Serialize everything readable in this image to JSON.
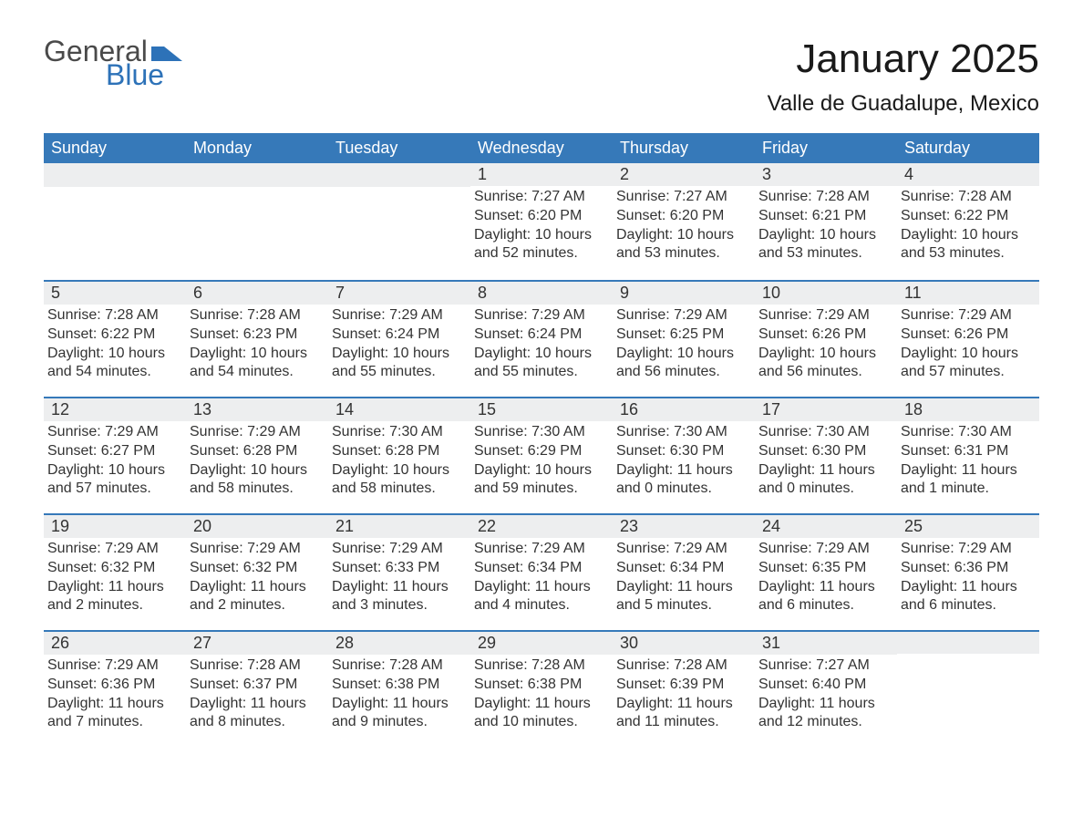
{
  "logo": {
    "text1": "General",
    "text2": "Blue",
    "mark_color": "#2d72b8"
  },
  "title": "January 2025",
  "location": "Valle de Guadalupe, Mexico",
  "colors": {
    "header_bg": "#3679b9",
    "header_text": "#ffffff",
    "daynum_bg": "#edeeef",
    "border": "#3679b9",
    "body_text": "#333333",
    "page_bg": "#ffffff"
  },
  "day_headers": [
    "Sunday",
    "Monday",
    "Tuesday",
    "Wednesday",
    "Thursday",
    "Friday",
    "Saturday"
  ],
  "weeks": [
    [
      null,
      null,
      null,
      {
        "n": "1",
        "sunrise": "7:27 AM",
        "sunset": "6:20 PM",
        "daylight": "10 hours and 52 minutes."
      },
      {
        "n": "2",
        "sunrise": "7:27 AM",
        "sunset": "6:20 PM",
        "daylight": "10 hours and 53 minutes."
      },
      {
        "n": "3",
        "sunrise": "7:28 AM",
        "sunset": "6:21 PM",
        "daylight": "10 hours and 53 minutes."
      },
      {
        "n": "4",
        "sunrise": "7:28 AM",
        "sunset": "6:22 PM",
        "daylight": "10 hours and 53 minutes."
      }
    ],
    [
      {
        "n": "5",
        "sunrise": "7:28 AM",
        "sunset": "6:22 PM",
        "daylight": "10 hours and 54 minutes."
      },
      {
        "n": "6",
        "sunrise": "7:28 AM",
        "sunset": "6:23 PM",
        "daylight": "10 hours and 54 minutes."
      },
      {
        "n": "7",
        "sunrise": "7:29 AM",
        "sunset": "6:24 PM",
        "daylight": "10 hours and 55 minutes."
      },
      {
        "n": "8",
        "sunrise": "7:29 AM",
        "sunset": "6:24 PM",
        "daylight": "10 hours and 55 minutes."
      },
      {
        "n": "9",
        "sunrise": "7:29 AM",
        "sunset": "6:25 PM",
        "daylight": "10 hours and 56 minutes."
      },
      {
        "n": "10",
        "sunrise": "7:29 AM",
        "sunset": "6:26 PM",
        "daylight": "10 hours and 56 minutes."
      },
      {
        "n": "11",
        "sunrise": "7:29 AM",
        "sunset": "6:26 PM",
        "daylight": "10 hours and 57 minutes."
      }
    ],
    [
      {
        "n": "12",
        "sunrise": "7:29 AM",
        "sunset": "6:27 PM",
        "daylight": "10 hours and 57 minutes."
      },
      {
        "n": "13",
        "sunrise": "7:29 AM",
        "sunset": "6:28 PM",
        "daylight": "10 hours and 58 minutes."
      },
      {
        "n": "14",
        "sunrise": "7:30 AM",
        "sunset": "6:28 PM",
        "daylight": "10 hours and 58 minutes."
      },
      {
        "n": "15",
        "sunrise": "7:30 AM",
        "sunset": "6:29 PM",
        "daylight": "10 hours and 59 minutes."
      },
      {
        "n": "16",
        "sunrise": "7:30 AM",
        "sunset": "6:30 PM",
        "daylight": "11 hours and 0 minutes."
      },
      {
        "n": "17",
        "sunrise": "7:30 AM",
        "sunset": "6:30 PM",
        "daylight": "11 hours and 0 minutes."
      },
      {
        "n": "18",
        "sunrise": "7:30 AM",
        "sunset": "6:31 PM",
        "daylight": "11 hours and 1 minute."
      }
    ],
    [
      {
        "n": "19",
        "sunrise": "7:29 AM",
        "sunset": "6:32 PM",
        "daylight": "11 hours and 2 minutes."
      },
      {
        "n": "20",
        "sunrise": "7:29 AM",
        "sunset": "6:32 PM",
        "daylight": "11 hours and 2 minutes."
      },
      {
        "n": "21",
        "sunrise": "7:29 AM",
        "sunset": "6:33 PM",
        "daylight": "11 hours and 3 minutes."
      },
      {
        "n": "22",
        "sunrise": "7:29 AM",
        "sunset": "6:34 PM",
        "daylight": "11 hours and 4 minutes."
      },
      {
        "n": "23",
        "sunrise": "7:29 AM",
        "sunset": "6:34 PM",
        "daylight": "11 hours and 5 minutes."
      },
      {
        "n": "24",
        "sunrise": "7:29 AM",
        "sunset": "6:35 PM",
        "daylight": "11 hours and 6 minutes."
      },
      {
        "n": "25",
        "sunrise": "7:29 AM",
        "sunset": "6:36 PM",
        "daylight": "11 hours and 6 minutes."
      }
    ],
    [
      {
        "n": "26",
        "sunrise": "7:29 AM",
        "sunset": "6:36 PM",
        "daylight": "11 hours and 7 minutes."
      },
      {
        "n": "27",
        "sunrise": "7:28 AM",
        "sunset": "6:37 PM",
        "daylight": "11 hours and 8 minutes."
      },
      {
        "n": "28",
        "sunrise": "7:28 AM",
        "sunset": "6:38 PM",
        "daylight": "11 hours and 9 minutes."
      },
      {
        "n": "29",
        "sunrise": "7:28 AM",
        "sunset": "6:38 PM",
        "daylight": "11 hours and 10 minutes."
      },
      {
        "n": "30",
        "sunrise": "7:28 AM",
        "sunset": "6:39 PM",
        "daylight": "11 hours and 11 minutes."
      },
      {
        "n": "31",
        "sunrise": "7:27 AM",
        "sunset": "6:40 PM",
        "daylight": "11 hours and 12 minutes."
      },
      null
    ]
  ],
  "labels": {
    "sunrise": "Sunrise:",
    "sunset": "Sunset:",
    "daylight": "Daylight:"
  }
}
